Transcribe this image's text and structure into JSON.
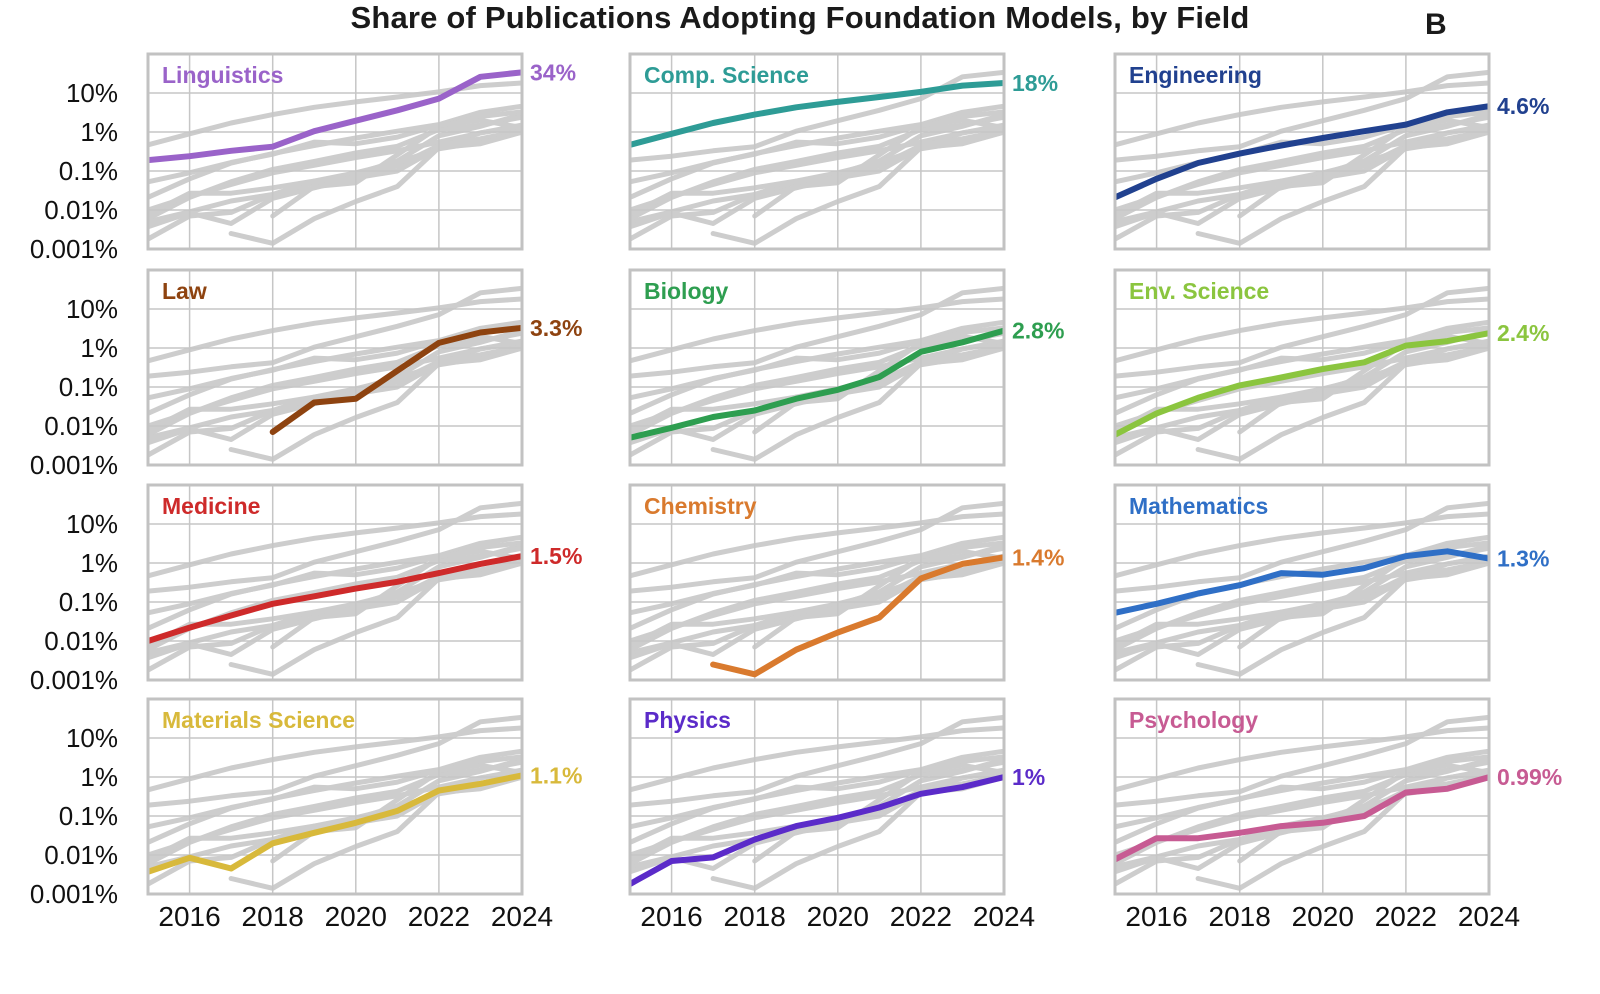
{
  "title": "Share of Publications Adopting Foundation Models, by Field",
  "panel_annotation": "B",
  "chart_data": {
    "type": "line",
    "x": [
      2015,
      2016,
      2017,
      2018,
      2019,
      2020,
      2021,
      2022,
      2023,
      2024
    ],
    "x_tick_labels": [
      "2016",
      "2018",
      "2020",
      "2022",
      "2024"
    ],
    "x_tick_years": [
      2016,
      2018,
      2020,
      2022,
      2024
    ],
    "y_scale": "log",
    "y_tick_labels": [
      "10%",
      "1%",
      "0.1%",
      "0.01%",
      "0.001%"
    ],
    "y_tick_percent": [
      10,
      1,
      0.1,
      0.01,
      0.001
    ],
    "ylim_percent": [
      0.001,
      100
    ],
    "grid": true,
    "grid_color": "#c6c6c6",
    "panel_border_color": "#c2c2c2",
    "background_line_color": "#cdcdcd",
    "layout_hint": "12 small-multiple panels, 3 columns x 4 rows; each panel highlights one field, all other fields drawn gray",
    "series": [
      {
        "name": "Linguistics",
        "color": "#9a63c9",
        "end_label": "34%",
        "values": [
          0.19,
          0.24,
          0.33,
          0.42,
          1.05,
          1.95,
          3.6,
          7.2,
          26,
          34
        ]
      },
      {
        "name": "Comp. Science",
        "color": "#2e9c96",
        "end_label": "18%",
        "values": [
          0.47,
          0.9,
          1.7,
          2.8,
          4.3,
          5.9,
          7.9,
          10.7,
          15.5,
          18
        ]
      },
      {
        "name": "Engineering",
        "color": "#21418f",
        "end_label": "4.6%",
        "values": [
          0.021,
          0.063,
          0.16,
          0.28,
          0.45,
          0.7,
          1.05,
          1.55,
          3.2,
          4.6
        ]
      },
      {
        "name": "Law",
        "color": "#8e4310",
        "end_label": "3.3%",
        "values": [
          null,
          null,
          null,
          0.007,
          0.04,
          0.05,
          0.26,
          1.35,
          2.5,
          3.3
        ]
      },
      {
        "name": "Biology",
        "color": "#2e9e50",
        "end_label": "2.8%",
        "values": [
          0.005,
          0.009,
          0.017,
          0.025,
          0.05,
          0.085,
          0.18,
          0.8,
          1.4,
          2.8
        ]
      },
      {
        "name": "Env. Science",
        "color": "#8bc53f",
        "end_label": "2.4%",
        "values": [
          0.006,
          0.021,
          0.053,
          0.11,
          0.175,
          0.29,
          0.43,
          1.15,
          1.5,
          2.4
        ]
      },
      {
        "name": "Medicine",
        "color": "#ce2a2a",
        "end_label": "1.5%",
        "values": [
          0.01,
          0.022,
          0.045,
          0.09,
          0.14,
          0.22,
          0.33,
          0.55,
          0.95,
          1.5
        ]
      },
      {
        "name": "Chemistry",
        "color": "#d97a2e",
        "end_label": "1.4%",
        "values": [
          null,
          null,
          0.0025,
          0.0014,
          0.006,
          0.0165,
          0.04,
          0.4,
          0.95,
          1.4
        ]
      },
      {
        "name": "Mathematics",
        "color": "#2f6fc6",
        "end_label": "1.3%",
        "values": [
          0.053,
          0.09,
          0.165,
          0.27,
          0.55,
          0.5,
          0.74,
          1.5,
          2.0,
          1.3
        ]
      },
      {
        "name": "Materials Science",
        "color": "#d8b93b",
        "end_label": "1.1%",
        "values": [
          0.0037,
          0.0085,
          0.0045,
          0.02,
          0.037,
          0.067,
          0.135,
          0.45,
          0.67,
          1.1
        ]
      },
      {
        "name": "Physics",
        "color": "#5b2bc9",
        "end_label": "1%",
        "values": [
          0.0018,
          0.007,
          0.0087,
          0.025,
          0.055,
          0.09,
          0.165,
          0.37,
          0.55,
          1.0
        ]
      },
      {
        "name": "Psychology",
        "color": "#c75b93",
        "end_label": "0.99%",
        "values": [
          0.0077,
          0.027,
          0.027,
          0.037,
          0.055,
          0.067,
          0.1,
          0.4,
          0.5,
          0.99
        ]
      }
    ]
  }
}
